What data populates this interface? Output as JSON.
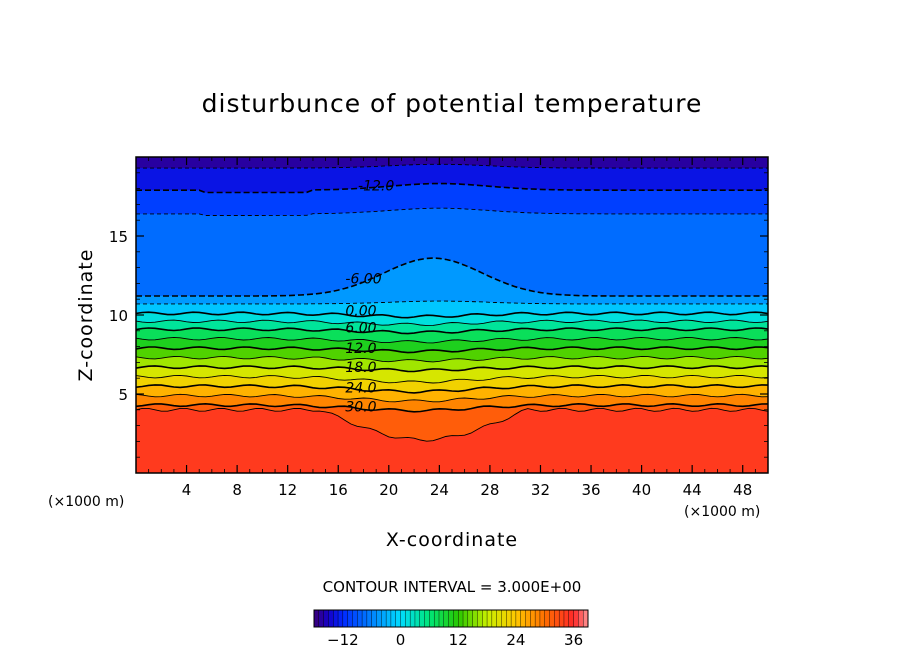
{
  "chart_data": {
    "type": "contour",
    "title": "disturbunce of potential temperature",
    "xlabel": "X-coordinate",
    "ylabel": "Z-coordinate",
    "x_unit": "(×1000 m)",
    "y_unit": "(×1000 m)",
    "xlim": [
      0,
      50
    ],
    "ylim": [
      0,
      20
    ],
    "x_ticks": [
      4,
      8,
      12,
      16,
      20,
      24,
      28,
      32,
      36,
      40,
      44,
      48
    ],
    "y_ticks": [
      5,
      10,
      15
    ],
    "contour_interval_text": "CONTOUR INTERVAL = 3.000E+00",
    "colorbar": {
      "min": -18,
      "max": 39,
      "tick_values": [
        -12,
        0,
        12,
        24,
        36
      ],
      "tick_labels": [
        "−12",
        "0",
        "12",
        "24",
        "36"
      ]
    },
    "contour_labels": [
      {
        "text": "-12.0",
        "x": 19.0,
        "z": 18.2
      },
      {
        "text": "-6.00",
        "x": 18.0,
        "z": 12.3
      },
      {
        "text": "0.00",
        "x": 17.8,
        "z": 10.3
      },
      {
        "text": "6.00",
        "x": 17.8,
        "z": 9.2
      },
      {
        "text": "12.0",
        "x": 17.8,
        "z": 7.9
      },
      {
        "text": "18.0",
        "x": 17.8,
        "z": 6.7
      },
      {
        "text": "24.0",
        "x": 17.8,
        "z": 5.4
      },
      {
        "text": "30.0",
        "x": 17.8,
        "z": 4.2
      }
    ]
  }
}
